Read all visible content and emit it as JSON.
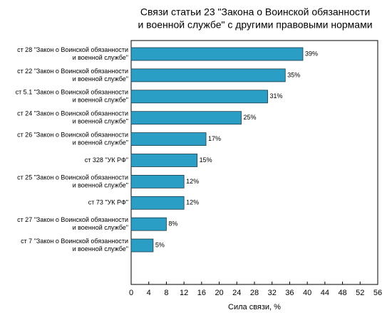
{
  "chart_data": {
    "type": "barh",
    "title": [
      "Связи статьи 23 \"Закона о Воинской обязанности",
      "и военной службе\" с другими правовыми нормами"
    ],
    "categories": [
      [
        "ст 28 \"Закон о Воинской обязанности",
        "и военной службе\""
      ],
      [
        "ст 22 \"Закон о Воинской обязанности",
        "и военной службе\""
      ],
      [
        "ст 5.1 \"Закон о Воинской обязанности",
        "и военной службе\""
      ],
      [
        "ст 24 \"Закон о Воинской обязанности",
        "и военной службе\""
      ],
      [
        "ст 26 \"Закон о Воинской обязанности",
        "и военной службе\""
      ],
      [
        "ст 328 \"УК РФ\""
      ],
      [
        "ст 25 \"Закон о Воинской обязанности",
        "и военной службе\""
      ],
      [
        "ст 73 \"УК РФ\""
      ],
      [
        "ст 27 \"Закон о Воинской обязанности",
        "и военной службе\""
      ],
      [
        "ст 7 \"Закон о Воинской обязанности",
        "и военной службе\""
      ]
    ],
    "values": [
      39,
      35,
      31,
      25,
      17,
      15,
      12,
      12,
      8,
      5
    ],
    "value_labels": [
      "39%",
      "35%",
      "31%",
      "25%",
      "17%",
      "15%",
      "12%",
      "12%",
      "8%",
      "5%"
    ],
    "color": "#2a9ec4",
    "xlim": [
      0,
      56
    ],
    "xticks": [
      0,
      4,
      8,
      12,
      16,
      20,
      24,
      28,
      32,
      36,
      40,
      44,
      48,
      52,
      56
    ],
    "xlabel": "Сила связи, %"
  }
}
